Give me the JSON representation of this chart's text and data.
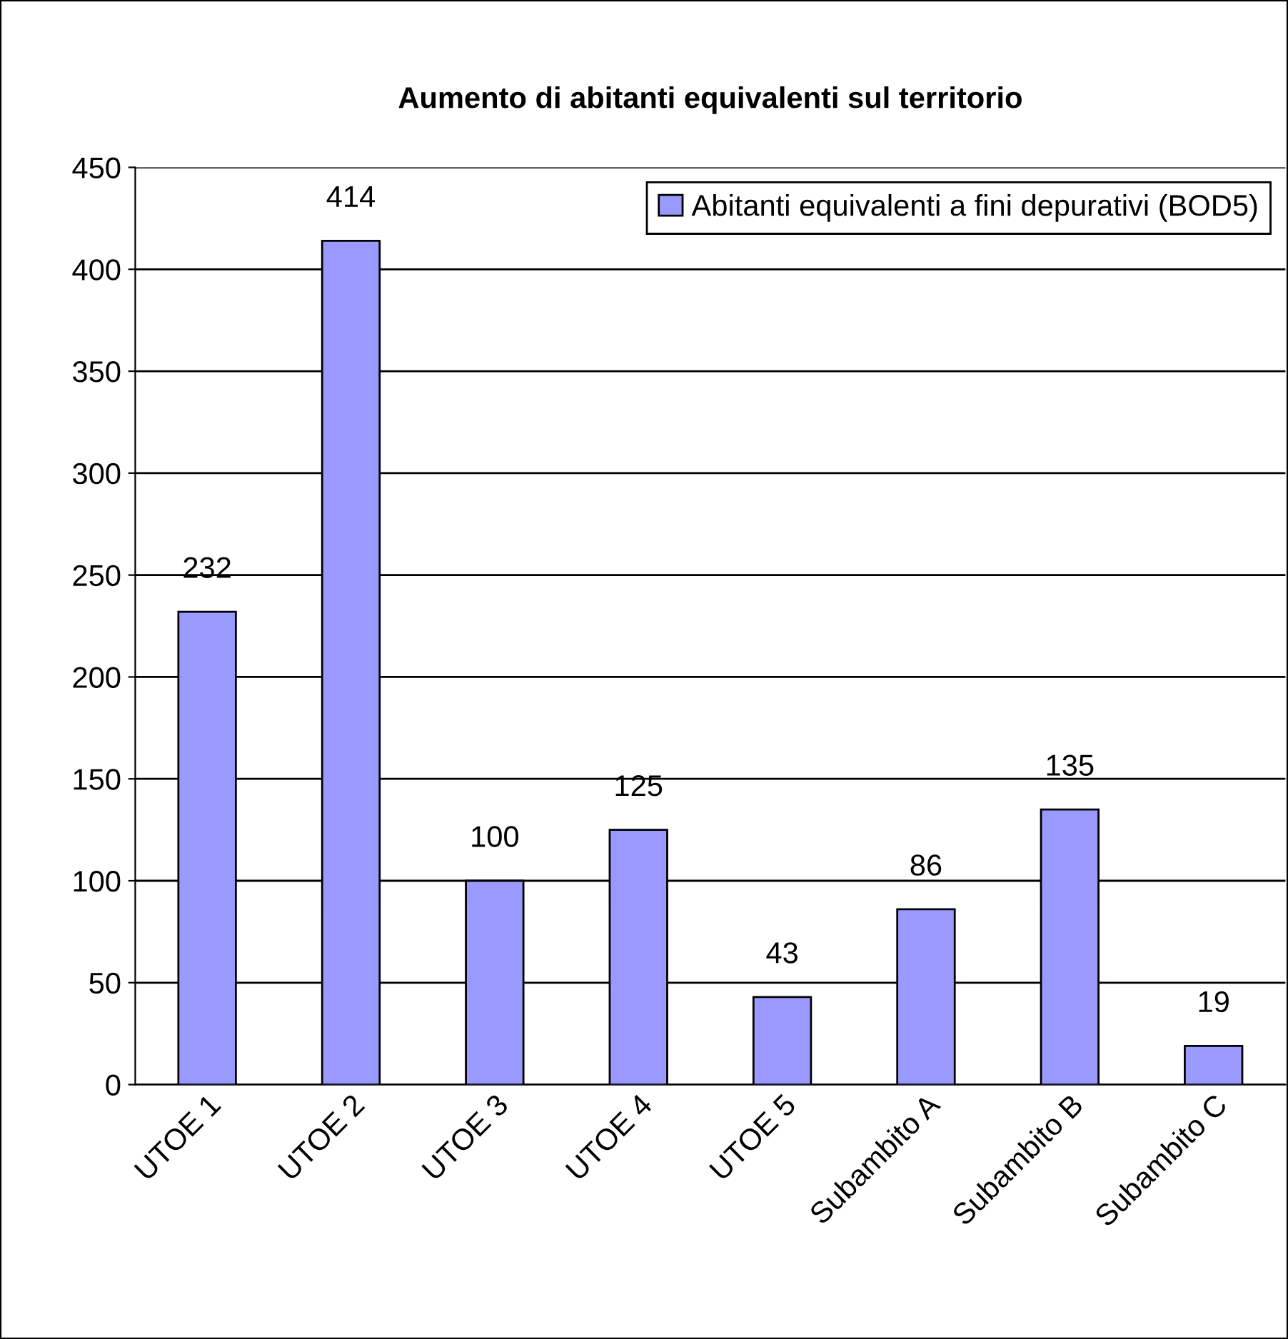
{
  "chart_data": {
    "type": "bar",
    "title": "Aumento di abitanti equivalenti sul territorio",
    "categories": [
      "UTOE 1",
      "UTOE 2",
      "UTOE 3",
      "UTOE 4",
      "UTOE 5",
      "Subambito A",
      "Subambito B",
      "Subambito C"
    ],
    "series": [
      {
        "name": "Abitanti equivalenti a fini depurativi (BOD5)",
        "color": "#9999ff",
        "values": [
          232,
          414,
          100,
          125,
          43,
          86,
          135,
          19
        ]
      }
    ],
    "ylim": [
      0,
      450
    ],
    "yticks": [
      0,
      50,
      100,
      150,
      200,
      250,
      300,
      350,
      400,
      450
    ],
    "grid": "y",
    "legend": "top right",
    "data_labels": true
  }
}
